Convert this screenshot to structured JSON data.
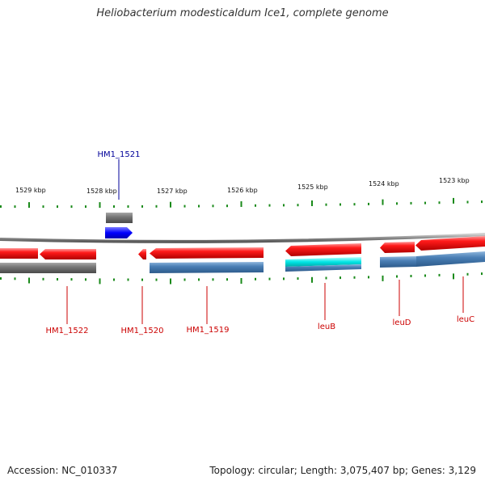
{
  "title": "Heliobacterium modesticaldum Ice1, complete genome",
  "footer": {
    "accession": "Accession: NC_010337",
    "summary": "Topology: circular; Length: 3,075,407 bp; Genes: 3,129"
  },
  "colors": {
    "forward_label": "#000099",
    "reverse_label": "#cc0000",
    "tick": "#1a8a1a",
    "cds": "#ff0000",
    "gene_grey": "#6e6e6e",
    "gene_steel": "#4a7fb5",
    "cyan": "#00e0e0",
    "blue_feature": "#0000ff"
  },
  "kbp_labels": [
    "1529 kbp",
    "1528 kbp",
    "1527 kbp",
    "1526 kbp",
    "1525 kbp",
    "1524 kbp",
    "1523 kbp"
  ],
  "gene_labels": [
    {
      "name": "HM1_1521",
      "strand": "forward"
    },
    {
      "name": "HM1_1522",
      "strand": "reverse"
    },
    {
      "name": "HM1_1520",
      "strand": "reverse"
    },
    {
      "name": "HM1_1519",
      "strand": "reverse"
    },
    {
      "name": "leuB",
      "strand": "reverse"
    },
    {
      "name": "leuD",
      "strand": "reverse"
    },
    {
      "name": "leuC",
      "strand": "reverse"
    }
  ]
}
